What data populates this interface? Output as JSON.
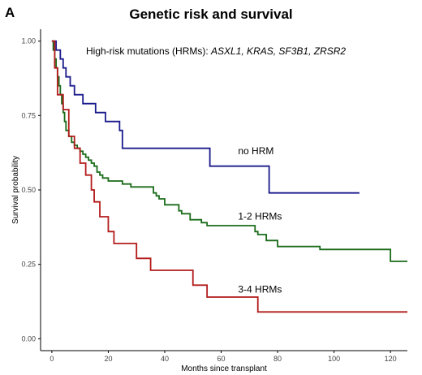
{
  "panel_letter": "A",
  "chart_data": {
    "type": "line",
    "step": true,
    "title": "Genetic risk and survival",
    "xlabel": "Months since transplant",
    "ylabel": "Survival probability",
    "xlim": [
      -4,
      126
    ],
    "ylim": [
      -0.04,
      1.04
    ],
    "x_ticks": [
      0,
      20,
      40,
      60,
      80,
      100,
      120
    ],
    "y_ticks": [
      0.0,
      0.25,
      0.5,
      0.75,
      1.0
    ],
    "y_tick_labels": [
      "0.00",
      "0.25",
      "0.50",
      "0.75",
      "1.00"
    ],
    "grid": false,
    "annotation": {
      "prefix": "High-risk mutations (HRMs): ",
      "genes": "ASXL1, KRAS, SF3B1, ZRSR2"
    },
    "series": [
      {
        "name": "no HRM",
        "color": "#1a1a8c",
        "x": [
          0,
          1.5,
          3,
          4,
          5,
          6.5,
          8,
          9.5,
          11,
          13.5,
          15.5,
          17,
          19,
          21,
          24,
          25,
          56,
          77,
          109
        ],
        "y": [
          1.0,
          0.97,
          0.94,
          0.91,
          0.88,
          0.85,
          0.82,
          0.82,
          0.79,
          0.79,
          0.76,
          0.76,
          0.73,
          0.73,
          0.7,
          0.64,
          0.58,
          0.49,
          0.49
        ]
      },
      {
        "name": "1-2 HRMs",
        "color": "#1a6b1a",
        "x": [
          0,
          0.5,
          1,
          1.5,
          2,
          2.5,
          3,
          3.5,
          4,
          4.5,
          5,
          6,
          7,
          8,
          9,
          10,
          11,
          12,
          13,
          14,
          15,
          16,
          17,
          18,
          20,
          22,
          25,
          28,
          33,
          36,
          37,
          38,
          40,
          45,
          46,
          49,
          53,
          55,
          60,
          67,
          72,
          73,
          76,
          80,
          95,
          110,
          120,
          126
        ],
        "y": [
          1.0,
          0.97,
          0.94,
          0.91,
          0.88,
          0.85,
          0.82,
          0.79,
          0.76,
          0.73,
          0.7,
          0.68,
          0.66,
          0.65,
          0.64,
          0.63,
          0.62,
          0.61,
          0.6,
          0.59,
          0.58,
          0.56,
          0.55,
          0.54,
          0.53,
          0.53,
          0.52,
          0.51,
          0.51,
          0.49,
          0.48,
          0.47,
          0.45,
          0.43,
          0.42,
          0.4,
          0.39,
          0.38,
          0.38,
          0.38,
          0.36,
          0.35,
          0.33,
          0.31,
          0.3,
          0.3,
          0.26,
          0.26
        ]
      },
      {
        "name": "3-4 HRMs",
        "color": "#b31b1b",
        "x": [
          0,
          1,
          2,
          4,
          6,
          8,
          10,
          12,
          14,
          15,
          17,
          20,
          22,
          30,
          32,
          35,
          40,
          50,
          53,
          55,
          60,
          73,
          126
        ],
        "y": [
          1.0,
          0.91,
          0.82,
          0.77,
          0.68,
          0.64,
          0.59,
          0.55,
          0.5,
          0.46,
          0.41,
          0.36,
          0.32,
          0.27,
          0.27,
          0.23,
          0.23,
          0.18,
          0.18,
          0.14,
          0.14,
          0.09,
          0.09
        ]
      }
    ]
  }
}
